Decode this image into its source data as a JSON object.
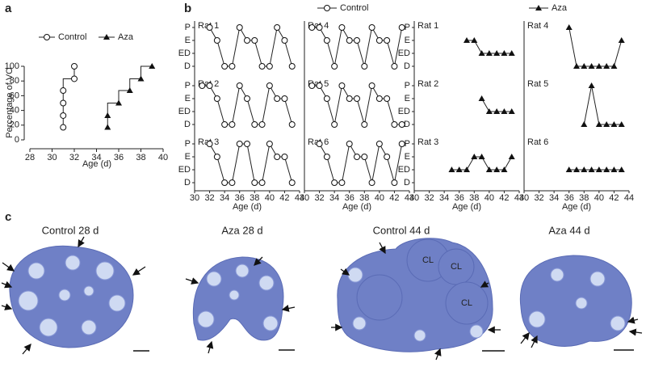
{
  "chart_data": [
    {
      "type": "step",
      "panel_label": "a",
      "ylabel": "Percentage of VO",
      "xlabel": "Age (d)",
      "xlim": [
        28,
        40
      ],
      "xticks": [
        28,
        30,
        32,
        34,
        36,
        38,
        40
      ],
      "ylim": [
        0,
        100
      ],
      "yticks": [
        0,
        20,
        40,
        60,
        80,
        100
      ],
      "series": [
        {
          "name": "Control",
          "marker": "circle",
          "x": [
            31,
            31,
            31,
            31,
            32,
            32
          ],
          "values": [
            17,
            33,
            50,
            67,
            83,
            100
          ]
        },
        {
          "name": "Aza",
          "marker": "triangle",
          "x": [
            35,
            35,
            36,
            37,
            38,
            39
          ],
          "values": [
            17,
            33,
            50,
            67,
            83,
            100
          ]
        }
      ]
    },
    {
      "type": "small-multiples",
      "panel_label": "b",
      "xlabel": "Age (d)",
      "xlim": [
        30,
        44
      ],
      "xticks": [
        30,
        32,
        34,
        36,
        38,
        40,
        42,
        44
      ],
      "ylim": [
        0,
        3
      ],
      "yticks": [
        {
          "value": 0,
          "label": "D"
        },
        {
          "value": 1,
          "label": "ED"
        },
        {
          "value": 2,
          "label": "E"
        },
        {
          "value": 3,
          "label": "P"
        }
      ],
      "series": [
        {
          "name": "Control",
          "marker": "circle",
          "panels": [
            {
              "title": "Rat 1",
              "x": [
                32,
                33,
                34,
                35,
                36,
                37,
                38,
                39,
                40,
                41,
                42,
                43
              ],
              "values": [
                3,
                2,
                0,
                0,
                3,
                2,
                2,
                0,
                0,
                3,
                2,
                0
              ]
            },
            {
              "title": "Rat 2",
              "x": [
                31,
                32,
                33,
                34,
                35,
                36,
                37,
                38,
                39,
                40,
                41,
                42,
                43
              ],
              "values": [
                3,
                3,
                2,
                0,
                0,
                3,
                2,
                0,
                0,
                3,
                2,
                2,
                0
              ]
            },
            {
              "title": "Rat 3",
              "x": [
                32,
                33,
                34,
                35,
                36,
                37,
                38,
                39,
                40,
                41,
                42,
                43
              ],
              "values": [
                3,
                2,
                0,
                0,
                3,
                3,
                0,
                0,
                3,
                2,
                2,
                0
              ]
            },
            {
              "title": "Rat 4",
              "x": [
                31,
                32,
                33,
                34,
                35,
                36,
                37,
                38,
                39,
                40,
                41,
                42,
                43
              ],
              "values": [
                3,
                3,
                2,
                0,
                3,
                2,
                2,
                0,
                3,
                2,
                2,
                0,
                3
              ]
            },
            {
              "title": "Rat 5",
              "x": [
                31,
                32,
                33,
                34,
                35,
                36,
                37,
                38,
                39,
                40,
                41,
                42,
                43
              ],
              "values": [
                3,
                3,
                2,
                0,
                3,
                2,
                2,
                0,
                3,
                2,
                2,
                0,
                0
              ]
            },
            {
              "title": "Rat 6",
              "x": [
                32,
                33,
                34,
                35,
                36,
                37,
                38,
                39,
                40,
                41,
                42,
                43
              ],
              "values": [
                3,
                2,
                0,
                0,
                3,
                2,
                2,
                0,
                3,
                2,
                0,
                3
              ]
            }
          ]
        },
        {
          "name": "Aza",
          "marker": "triangle",
          "panels": [
            {
              "title": "Rat 1",
              "x": [
                37,
                38,
                39,
                40,
                41,
                42,
                43
              ],
              "values": [
                2,
                2,
                1,
                1,
                1,
                1,
                1
              ]
            },
            {
              "title": "Rat 2",
              "x": [
                39,
                40,
                41,
                42,
                43
              ],
              "values": [
                2,
                1,
                1,
                1,
                1
              ]
            },
            {
              "title": "Rat 3",
              "x": [
                35,
                36,
                37,
                38,
                39,
                40,
                41,
                42,
                43
              ],
              "values": [
                1,
                1,
                1,
                2,
                2,
                1,
                1,
                1,
                2
              ]
            },
            {
              "title": "Rat 4",
              "x": [
                36,
                37,
                38,
                39,
                40,
                41,
                42,
                43
              ],
              "values": [
                3,
                0,
                0,
                0,
                0,
                0,
                0,
                2
              ]
            },
            {
              "title": "Rat 5",
              "x": [
                38,
                39,
                40,
                41,
                42,
                43
              ],
              "values": [
                0,
                3,
                0,
                0,
                0,
                0
              ]
            },
            {
              "title": "Rat 6",
              "x": [
                36,
                37,
                38,
                39,
                40,
                41,
                42,
                43
              ],
              "values": [
                1,
                1,
                1,
                1,
                1,
                1,
                1,
                1
              ]
            }
          ]
        }
      ]
    }
  ],
  "panel_c": {
    "panel_label": "c",
    "images": [
      {
        "caption": "Control 28 d"
      },
      {
        "caption": "Aza 28 d"
      },
      {
        "caption": "Control 44 d",
        "labels": [
          "CL",
          "CL",
          "CL"
        ]
      },
      {
        "caption": "Aza 44 d"
      }
    ]
  }
}
